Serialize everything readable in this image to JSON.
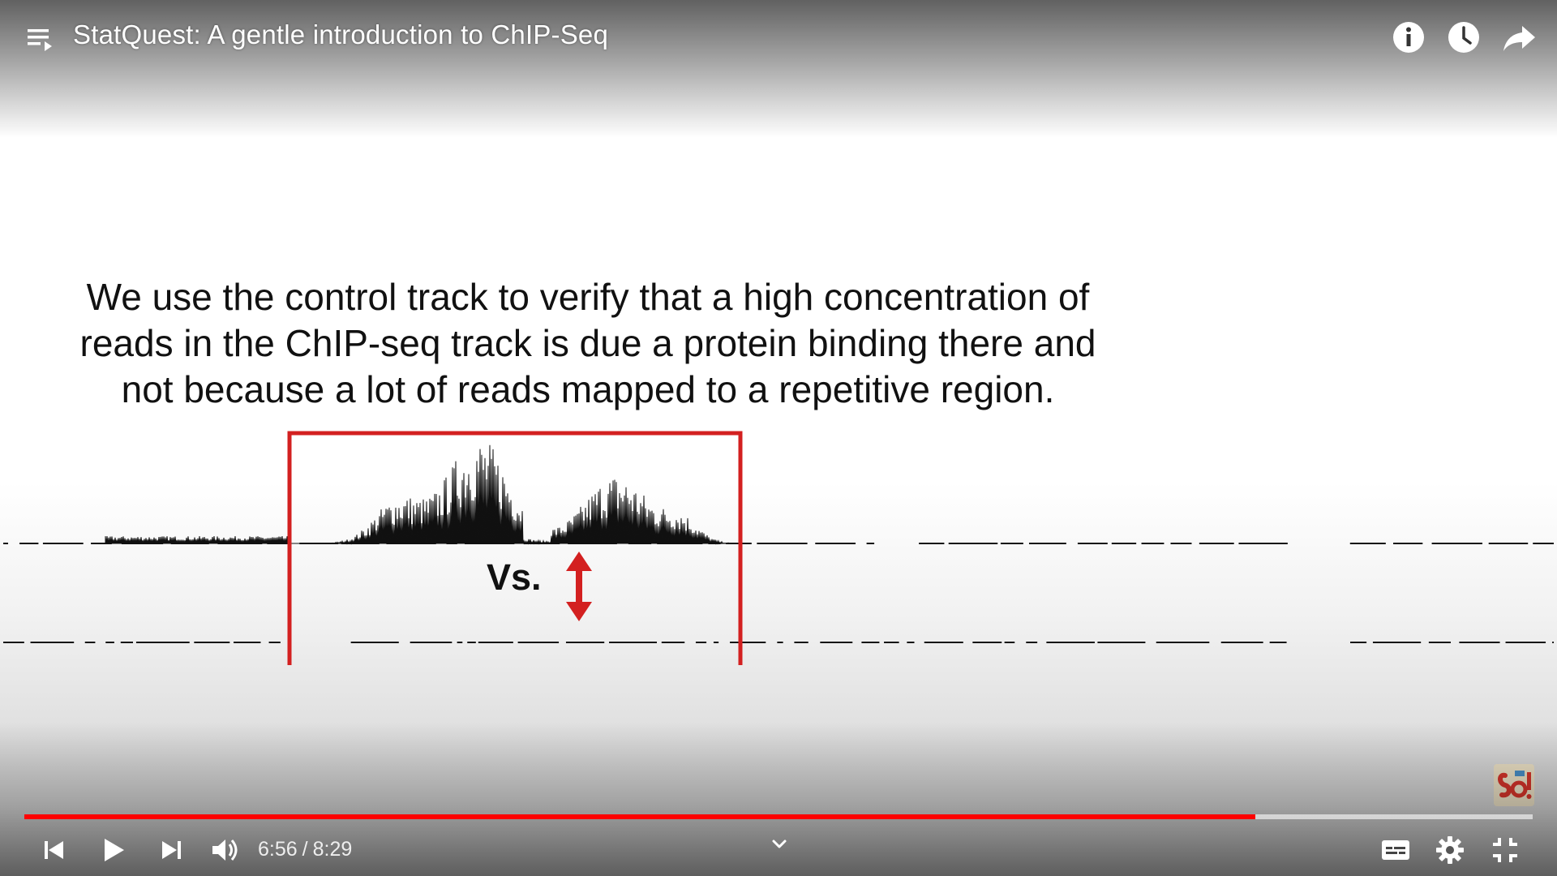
{
  "player": {
    "title": "StatQuest: A gentle introduction to ChIP-Seq",
    "current_time": "6:56",
    "separator": "/",
    "duration": "8:29",
    "progress_fraction": 0.8163,
    "accent_color": "#ff0000"
  },
  "slide": {
    "caption_lines": [
      "We use the control track to verify that a high concentration of",
      "reads in the ChIP-seq track is due a protein binding there and",
      "not because a lot of reads mapped to a repetitive region."
    ],
    "comparison_label": "Vs.",
    "highlight_color": "#d32020"
  },
  "icons": {
    "top": [
      "playlist-icon",
      "info-icon",
      "watch-later-icon",
      "share-icon"
    ],
    "bottom": [
      "previous-icon",
      "play-icon",
      "next-icon",
      "volume-icon",
      "chevron-down-icon",
      "captions-icon",
      "settings-icon",
      "exit-fullscreen-icon"
    ]
  }
}
